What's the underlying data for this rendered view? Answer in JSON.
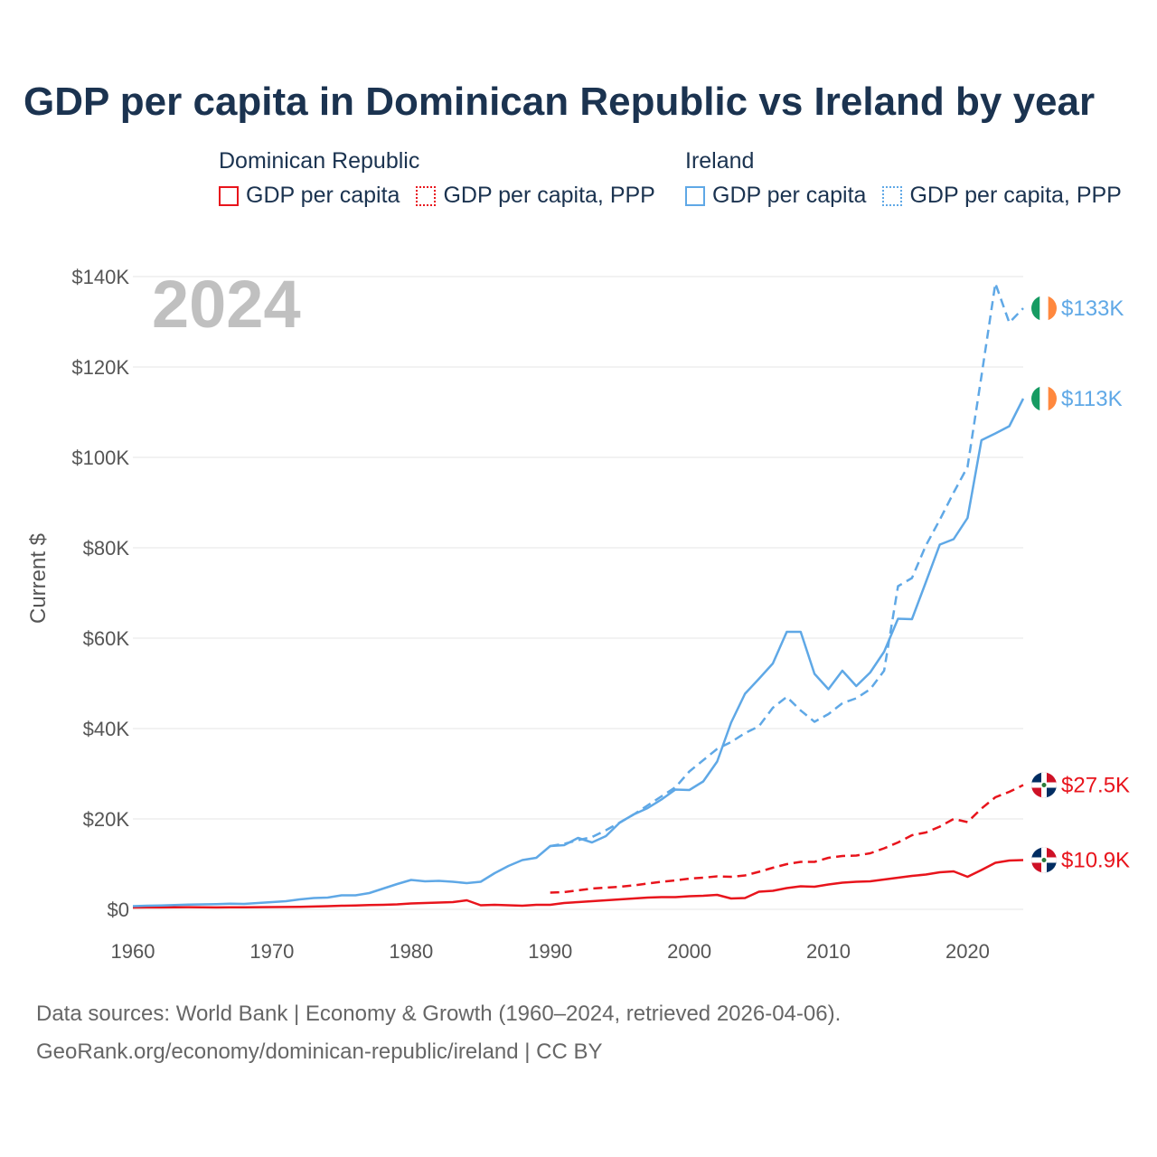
{
  "title": "GDP per capita in Dominican Republic vs Ireland by year",
  "colors": {
    "dominican": "#e8141c",
    "ireland": "#5fa8e6",
    "grid": "#e6e6e6",
    "axis_text": "#555555"
  },
  "legend": [
    {
      "country": "Dominican Republic",
      "color": "#e8141c",
      "items": [
        {
          "label": "GDP per capita",
          "style": "solid"
        },
        {
          "label": "GDP per capita, PPP",
          "style": "dotted"
        }
      ]
    },
    {
      "country": "Ireland",
      "color": "#5fa8e6",
      "items": [
        {
          "label": "GDP per capita",
          "style": "solid"
        },
        {
          "label": "GDP per capita, PPP",
          "style": "dotted"
        }
      ]
    }
  ],
  "chart_data": {
    "type": "line",
    "year_label": "2024",
    "ylabel": "Current $",
    "xlim": [
      1960,
      2024
    ],
    "ylim": [
      0,
      140000
    ],
    "x_ticks": [
      1960,
      1970,
      1980,
      1990,
      2000,
      2010,
      2020
    ],
    "y_ticks": [
      {
        "value": 0,
        "label": "$0"
      },
      {
        "value": 20000,
        "label": "$20K"
      },
      {
        "value": 40000,
        "label": "$40K"
      },
      {
        "value": 60000,
        "label": "$60K"
      },
      {
        "value": 80000,
        "label": "$80K"
      },
      {
        "value": 100000,
        "label": "$100K"
      },
      {
        "value": 120000,
        "label": "$120K"
      },
      {
        "value": 140000,
        "label": "$140K"
      }
    ],
    "series": [
      {
        "name": "Dominican Republic GDP per capita",
        "country": "dominican",
        "dash": "solid",
        "end_label": "$10.9K",
        "start_year": 1960,
        "values": [
          400,
          420,
          430,
          460,
          480,
          450,
          430,
          450,
          460,
          480,
          500,
          520,
          560,
          620,
          700,
          800,
          850,
          950,
          1000,
          1100,
          1300,
          1400,
          1500,
          1600,
          2000,
          900,
          1000,
          900,
          800,
          1000,
          1000,
          1400,
          1600,
          1800,
          2000,
          2200,
          2400,
          2600,
          2700,
          2700,
          2900,
          3000,
          3200,
          2400,
          2500,
          3900,
          4100,
          4700,
          5100,
          5000,
          5500,
          5900,
          6100,
          6200,
          6600,
          7000,
          7400,
          7700,
          8200,
          8400,
          7200,
          8700,
          10300,
          10800,
          10900
        ]
      },
      {
        "name": "Dominican Republic GDP per capita, PPP",
        "country": "dominican",
        "dash": "dashed",
        "end_label": "$27.5K",
        "start_year": 1990,
        "values": [
          3700,
          3800,
          4200,
          4600,
          4800,
          5000,
          5300,
          5700,
          6100,
          6400,
          6800,
          7000,
          7300,
          7200,
          7500,
          8300,
          9200,
          10000,
          10500,
          10500,
          11400,
          11800,
          11900,
          12400,
          13500,
          14800,
          16400,
          17000,
          18300,
          20000,
          19300,
          22300,
          24800,
          26000,
          27500
        ]
      },
      {
        "name": "Ireland GDP per capita",
        "country": "ireland",
        "dash": "solid",
        "end_label": "$113K",
        "start_year": 1960,
        "values": [
          700,
          800,
          850,
          950,
          1050,
          1100,
          1150,
          1250,
          1200,
          1400,
          1600,
          1800,
          2200,
          2500,
          2600,
          3100,
          3100,
          3600,
          4600,
          5600,
          6500,
          6200,
          6300,
          6100,
          5800,
          6100,
          8000,
          9600,
          10900,
          11400,
          14000,
          14200,
          15800,
          14800,
          16200,
          19200,
          21000,
          22400,
          24300,
          26500,
          26400,
          28300,
          32700,
          41300,
          47700,
          51000,
          54400,
          61400,
          61400,
          52100,
          48700,
          52800,
          49400,
          52400,
          57000,
          64300,
          64200,
          72400,
          80700,
          81900,
          86600,
          103800,
          105300,
          106900,
          113000
        ]
      },
      {
        "name": "Ireland GDP per capita, PPP",
        "country": "ireland",
        "dash": "dashed",
        "end_label": "$133K",
        "start_year": 1990,
        "values": [
          14000,
          14500,
          15300,
          16000,
          17500,
          19200,
          21000,
          23000,
          25000,
          27000,
          30500,
          33000,
          35500,
          37000,
          39000,
          40500,
          44600,
          47000,
          44000,
          41500,
          43200,
          45600,
          46700,
          48700,
          52800,
          71500,
          73300,
          80500,
          86200,
          92200,
          97900,
          118000,
          138500,
          129800,
          133000
        ]
      }
    ]
  },
  "footer": {
    "line1": "Data sources: World Bank | Economy & Growth (1960–2024, retrieved 2026-04-06).",
    "line2": "GeoRank.org/economy/dominican-republic/ireland | CC BY"
  }
}
